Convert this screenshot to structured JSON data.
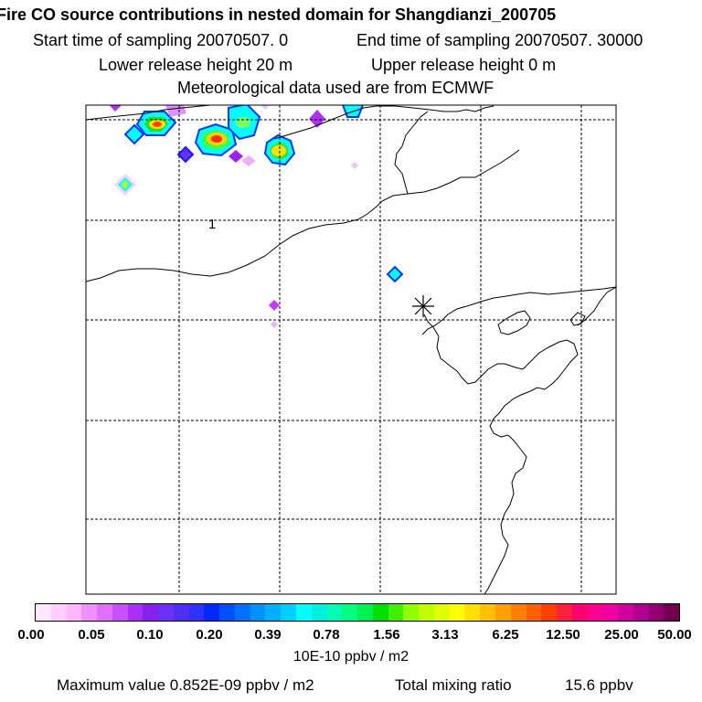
{
  "header": {
    "title": "Fire CO source contributions in nested domain for Shangdianzi_200705",
    "start_label": "Start time of sampling 20070507.    0",
    "end_label": "End time of sampling 20070507. 30000",
    "lower_label": "Lower release height   20 m",
    "upper_label": "Upper release height    0 m",
    "met_label": "Meteorological data used are from ECMWF"
  },
  "map": {
    "contour_label": "1",
    "receptor_marker": "asterisk-receptor",
    "colors": {
      "coast": "#000000",
      "grid": "#000000"
    }
  },
  "legend": {
    "ticks": [
      "0.00",
      "0.05",
      "0.10",
      "0.20",
      "0.39",
      "0.78",
      "1.56",
      "3.13",
      "6.25",
      "12.50",
      "25.00",
      "50.00"
    ],
    "units": "10E-10 ppbv / m2",
    "colors": [
      "#ffe8ff",
      "#ffd0ff",
      "#ffb8ff",
      "#f090ff",
      "#e070ff",
      "#c850ff",
      "#a830f8",
      "#8820f0",
      "#6a30ff",
      "#5030f0",
      "#3030ff",
      "#0028ff",
      "#0050ff",
      "#0070ff",
      "#0090ff",
      "#00b0ff",
      "#00d0ff",
      "#00ffff",
      "#00f0e0",
      "#00ffb0",
      "#00ff80",
      "#00f050",
      "#00e000",
      "#40f000",
      "#90ff00",
      "#c0ff00",
      "#e0ff00",
      "#ffff00",
      "#ffe000",
      "#ffc000",
      "#ffa000",
      "#ff8000",
      "#ff6000",
      "#ff4000",
      "#ff2040",
      "#ff0070",
      "#ff0090",
      "#f000a0",
      "#d000a0",
      "#b00090",
      "#900070",
      "#700050"
    ]
  },
  "footer": {
    "max_label": "Maximum value  0.852E-09 ppbv / m2",
    "total_label": "Total mixing ratio",
    "total_value": "15.6 ppbv"
  }
}
